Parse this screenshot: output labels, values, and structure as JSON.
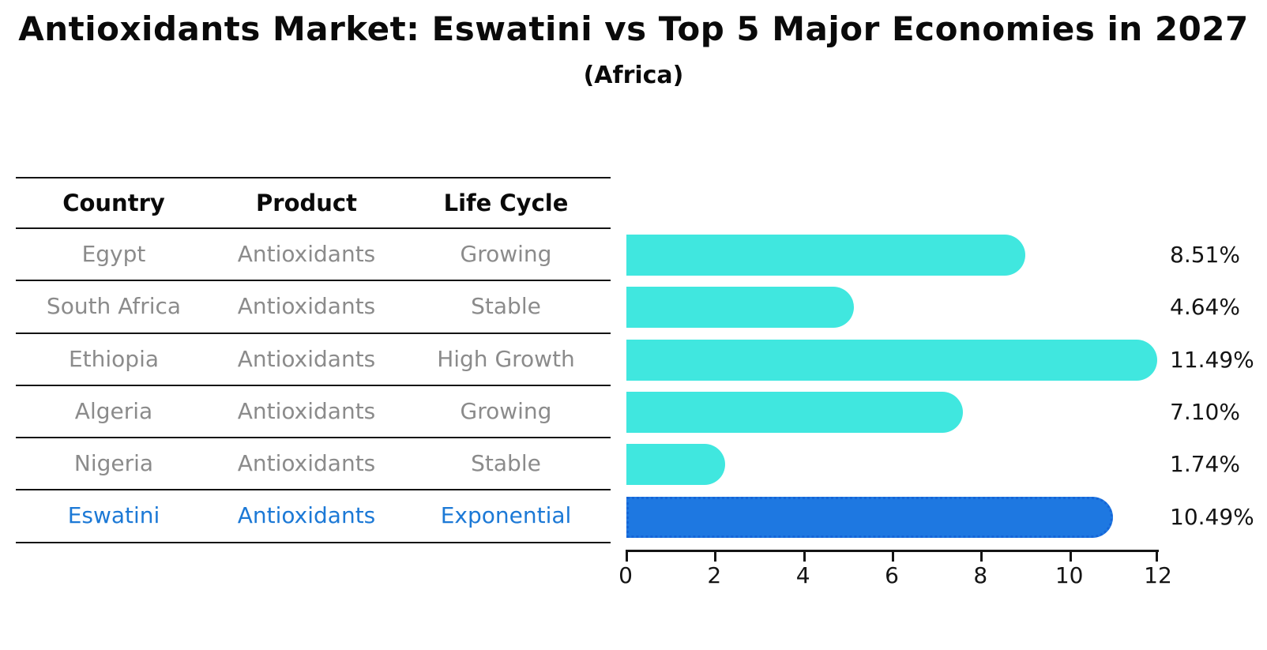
{
  "title": "Antioxidants Market: Eswatini vs Top 5 Major Economies in 2027",
  "subtitle": "(Africa)",
  "table": {
    "headers": [
      "Country",
      "Product",
      "Life Cycle"
    ],
    "rows": [
      {
        "country": "Egypt",
        "product": "Antioxidants",
        "life_cycle": "Growing",
        "highlight": false
      },
      {
        "country": "South Africa",
        "product": "Antioxidants",
        "life_cycle": "Stable",
        "highlight": false
      },
      {
        "country": "Ethiopia",
        "product": "Antioxidants",
        "life_cycle": "High Growth",
        "highlight": false
      },
      {
        "country": "Algeria",
        "product": "Antioxidants",
        "life_cycle": "Growing",
        "highlight": false
      },
      {
        "country": "Nigeria",
        "product": "Antioxidants",
        "life_cycle": "Stable",
        "highlight": false
      },
      {
        "country": "Eswatini",
        "product": "Antioxidants",
        "life_cycle": "Exponential",
        "highlight": true
      }
    ]
  },
  "chart_data": {
    "type": "bar",
    "orientation": "horizontal",
    "categories": [
      "Egypt",
      "South Africa",
      "Ethiopia",
      "Algeria",
      "Nigeria",
      "Eswatini"
    ],
    "values": [
      8.51,
      4.64,
      11.49,
      7.1,
      1.74,
      10.49
    ],
    "value_labels": [
      "8.51%",
      "4.64%",
      "11.49%",
      "7.10%",
      "1.74%",
      "10.49%"
    ],
    "x_ticks": [
      0,
      2,
      4,
      6,
      8,
      10,
      12
    ],
    "xlim": [
      0,
      12
    ],
    "highlight_index": 5,
    "grid": false,
    "legend": "none"
  },
  "colors": {
    "bar": "#40E7DF",
    "highlight_bar": "#1E78E1",
    "highlight_dots": "#1565D8",
    "highlight_text": "#1C79D6",
    "row_text": "#8B8B8B",
    "rule": "#141414"
  }
}
